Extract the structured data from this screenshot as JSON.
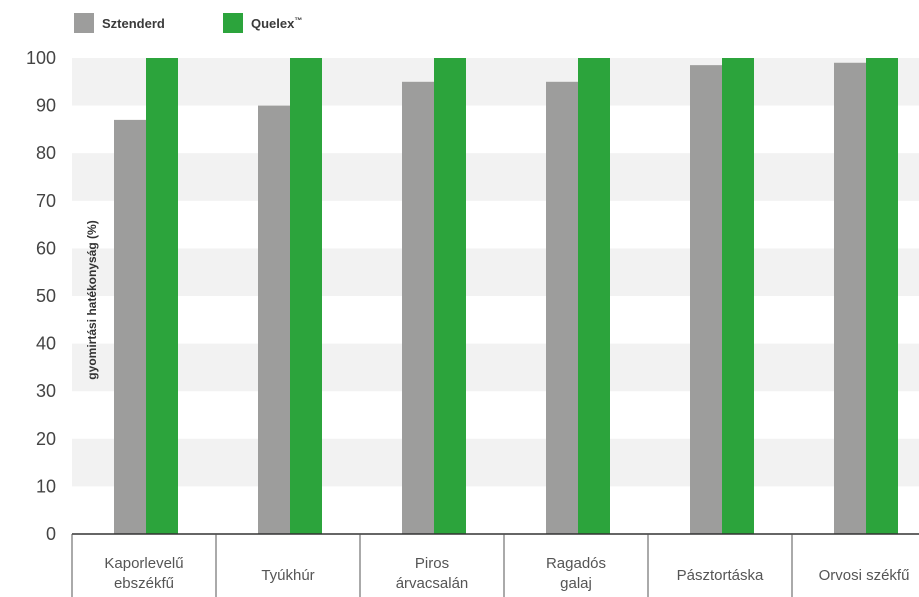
{
  "chart_data": {
    "type": "bar",
    "ylabel": "gyomirtási hatékonyság (%)",
    "xlabel": "",
    "ylim": [
      0,
      100
    ],
    "yticks": [
      0,
      10,
      20,
      30,
      40,
      50,
      60,
      70,
      80,
      90,
      100
    ],
    "grid": "alternating horizontal bands",
    "legend_position": "top-left",
    "categories": [
      [
        "Kaporlevelű",
        "ebszékfű"
      ],
      [
        "Tyúkhúr"
      ],
      [
        "Piros",
        "árvacsalán"
      ],
      [
        "Ragadós",
        "galaj"
      ],
      [
        "Pásztortáska"
      ],
      [
        "Orvosi székfű"
      ]
    ],
    "series": [
      {
        "name": "Sztenderd",
        "color": "#9d9d9c",
        "values": [
          87,
          90,
          95,
          95,
          98.5,
          99
        ]
      },
      {
        "name": "Quelex",
        "trademark": "™",
        "color": "#2ca43c",
        "values": [
          100,
          100,
          100,
          100,
          100,
          100
        ]
      }
    ]
  }
}
